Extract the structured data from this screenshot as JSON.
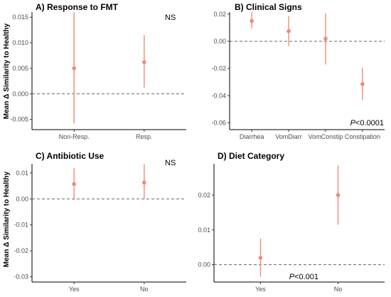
{
  "accent_color": "#f08a78",
  "chart_data": [
    {
      "type": "scatter",
      "title": "A) Response to FMT",
      "ylabel": "Mean Δ Similarity to Healthy",
      "annotation": "NS",
      "annotation_italic": "",
      "categories": [
        "Non-Resp.",
        "Resp."
      ],
      "values": [
        0.005,
        0.0062
      ],
      "lower": [
        -0.0058,
        0.0012
      ],
      "upper": [
        0.016,
        0.0115
      ],
      "ylim": [
        -0.007,
        0.016
      ],
      "yticks": [
        -0.005,
        0.0,
        0.005,
        0.01,
        0.015
      ],
      "ytick_labels": [
        "-0.005",
        "0.000",
        "0.005",
        "0.010",
        "0.015"
      ],
      "reference_line": 0
    },
    {
      "type": "scatter",
      "title": "B) Clinical Signs",
      "ylabel": "",
      "annotation": "<0.0001",
      "annotation_italic": "P",
      "categories": [
        "Diarrhea",
        "VomDiarr",
        "VomConstip",
        "Constipation"
      ],
      "values": [
        0.015,
        0.0075,
        0.002,
        -0.0315
      ],
      "lower": [
        0.0095,
        -0.0035,
        -0.017,
        -0.043
      ],
      "upper": [
        0.0215,
        0.0185,
        0.0205,
        -0.0195
      ],
      "ylim": [
        -0.065,
        0.0215
      ],
      "yticks": [
        -0.06,
        -0.04,
        -0.02,
        0.0,
        0.02
      ],
      "ytick_labels": [
        "-0.06",
        "-0.04",
        "-0.02",
        "0.00",
        "0.02"
      ],
      "reference_line": 0
    },
    {
      "type": "scatter",
      "title": "C) Antibiotic Use",
      "ylabel": "Mean Δ Similarity to Healthy",
      "annotation": "NS",
      "annotation_italic": "",
      "categories": [
        "Yes",
        "No"
      ],
      "values": [
        0.0057,
        0.0063
      ],
      "lower": [
        -0.0005,
        0.0
      ],
      "upper": [
        0.0118,
        0.0133
      ],
      "ylim": [
        -0.032,
        0.0135
      ],
      "yticks": [
        -0.03,
        -0.02,
        -0.01,
        0.0,
        0.01
      ],
      "ytick_labels": [
        "-0.03",
        "-0.02",
        "-0.01",
        "0.00",
        "0.01"
      ],
      "reference_line": 0
    },
    {
      "type": "scatter",
      "title": "D) Diet Category",
      "ylabel": "",
      "annotation": "<0.001",
      "annotation_italic": "P",
      "categories": [
        "Yes",
        "No"
      ],
      "values": [
        0.002,
        0.02
      ],
      "lower": [
        -0.0035,
        0.0115
      ],
      "upper": [
        0.0075,
        0.0285
      ],
      "ylim": [
        -0.005,
        0.029
      ],
      "yticks": [
        0.0,
        0.01,
        0.02
      ],
      "ytick_labels": [
        "0.00",
        "0.01",
        "0.02"
      ],
      "reference_line": 0
    }
  ]
}
